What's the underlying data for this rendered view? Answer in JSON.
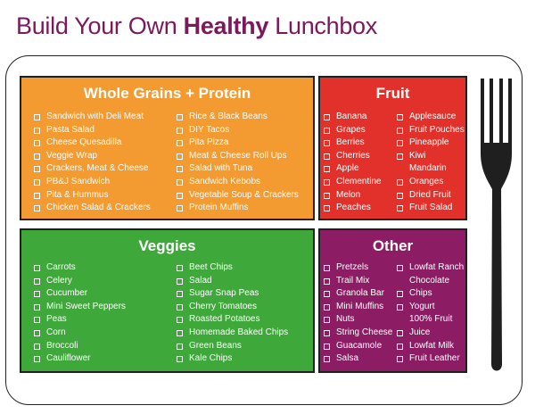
{
  "title": {
    "prefix": "Build Your Own ",
    "emphasis": "Healthy",
    "suffix": " Lunchbox"
  },
  "colors": {
    "title": "#7a1a5c",
    "grains": "#f39a31",
    "fruit": "#e2312b",
    "veggies": "#3fa83a",
    "other": "#8c1c63",
    "fork": "#1f1f1f"
  },
  "grains": {
    "heading": "Whole Grains + Protein",
    "col1": [
      "Sandwich with Deli Meat",
      "Pasta Salad",
      "Cheese Quesadilla",
      "Veggie Wrap",
      "Crackers, Meat & Cheese",
      "PB&J Sandwich",
      "Pita & Hummus",
      "Chicken Salad & Crackers"
    ],
    "col2": [
      "Rice & Black Beans",
      "DIY Tacos",
      "Pita Pizza",
      "Meat & Cheese Roll Ups",
      "Salad with Tuna",
      "Sandwich Kebobs",
      "Vegetable Soup & Crackers",
      "Protein Muffins"
    ]
  },
  "fruit": {
    "heading": "Fruit",
    "col1": [
      "Banana",
      "Grapes",
      "Berries",
      "Cherries",
      "Apple",
      "Clementine",
      "Melon",
      "Peaches"
    ],
    "col2": [
      "Applesauce",
      "Fruit Pouches",
      "Pineapple",
      "Kiwi",
      "Mandarin",
      "Oranges",
      "Dried Fruit",
      "Fruit Salad"
    ]
  },
  "veggies": {
    "heading": "Veggies",
    "col1": [
      "Carrots",
      "Celery",
      "Cucumber",
      "Mini Sweet Peppers",
      "Peas",
      "Corn",
      "Broccoli",
      "Cauliflower"
    ],
    "col2": [
      "Beet Chips",
      "Salad",
      "Sugar Snap Peas",
      "Cherry Tomatoes",
      "Roasted Potatoes",
      "Homemade Baked Chips",
      "Green Beans",
      "Kale Chips"
    ]
  },
  "other": {
    "heading": "Other",
    "col1": [
      "Pretzels",
      "Trail Mix",
      "Granola Bar",
      "Mini Muffins",
      "Nuts",
      "String Cheese",
      "Guacamole",
      "Salsa"
    ],
    "col2": [
      "Lowfat Ranch",
      "Chocolate",
      "Chips",
      "Yogurt",
      "100% Fruit",
      "Juice",
      "Lowfat Milk",
      "Fruit Leather"
    ]
  },
  "icons": {
    "checkbox": "checkbox-icon",
    "fork": "fork-icon"
  }
}
